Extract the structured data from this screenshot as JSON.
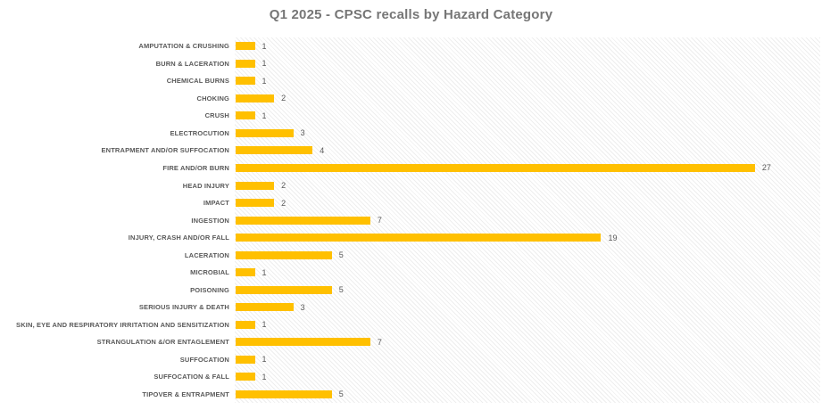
{
  "chart_data": {
    "type": "bar",
    "orientation": "horizontal",
    "title": "Q1 2025 - CPSC recalls by Hazard Category",
    "categories": [
      "AMPUTATION & CRUSHING",
      "BURN & LACERATION",
      "CHEMICAL BURNS",
      "CHOKING",
      "CRUSH",
      "ELECTROCUTION",
      "ENTRAPMENT AND/OR SUFFOCATION",
      "FIRE AND/OR BURN",
      "HEAD INJURY",
      "IMPACT",
      "INGESTION",
      "INJURY, CRASH AND/OR FALL",
      "LACERATION",
      "MICROBIAL",
      "POISONING",
      "SERIOUS INJURY & DEATH",
      "SKIN, EYE AND RESPIRATORY IRRITATION AND SENSITIZATION",
      "STRANGULATION &/OR ENTAGLEMENT",
      "SUFFOCATION",
      "SUFFOCATION & FALL",
      "TIPOVER & ENTRAPMENT"
    ],
    "values": [
      1,
      1,
      1,
      2,
      1,
      3,
      4,
      27,
      2,
      2,
      7,
      19,
      5,
      1,
      5,
      3,
      1,
      7,
      1,
      1,
      5
    ],
    "xlabel": "",
    "ylabel": "",
    "xlim": [
      0,
      30
    ],
    "grid": "none",
    "legend": "none",
    "data_labels": true,
    "bar_color": "#FFC000",
    "label_color": "#595959",
    "title_color": "#767676",
    "plot_background": "light diagonal hatch pattern"
  }
}
